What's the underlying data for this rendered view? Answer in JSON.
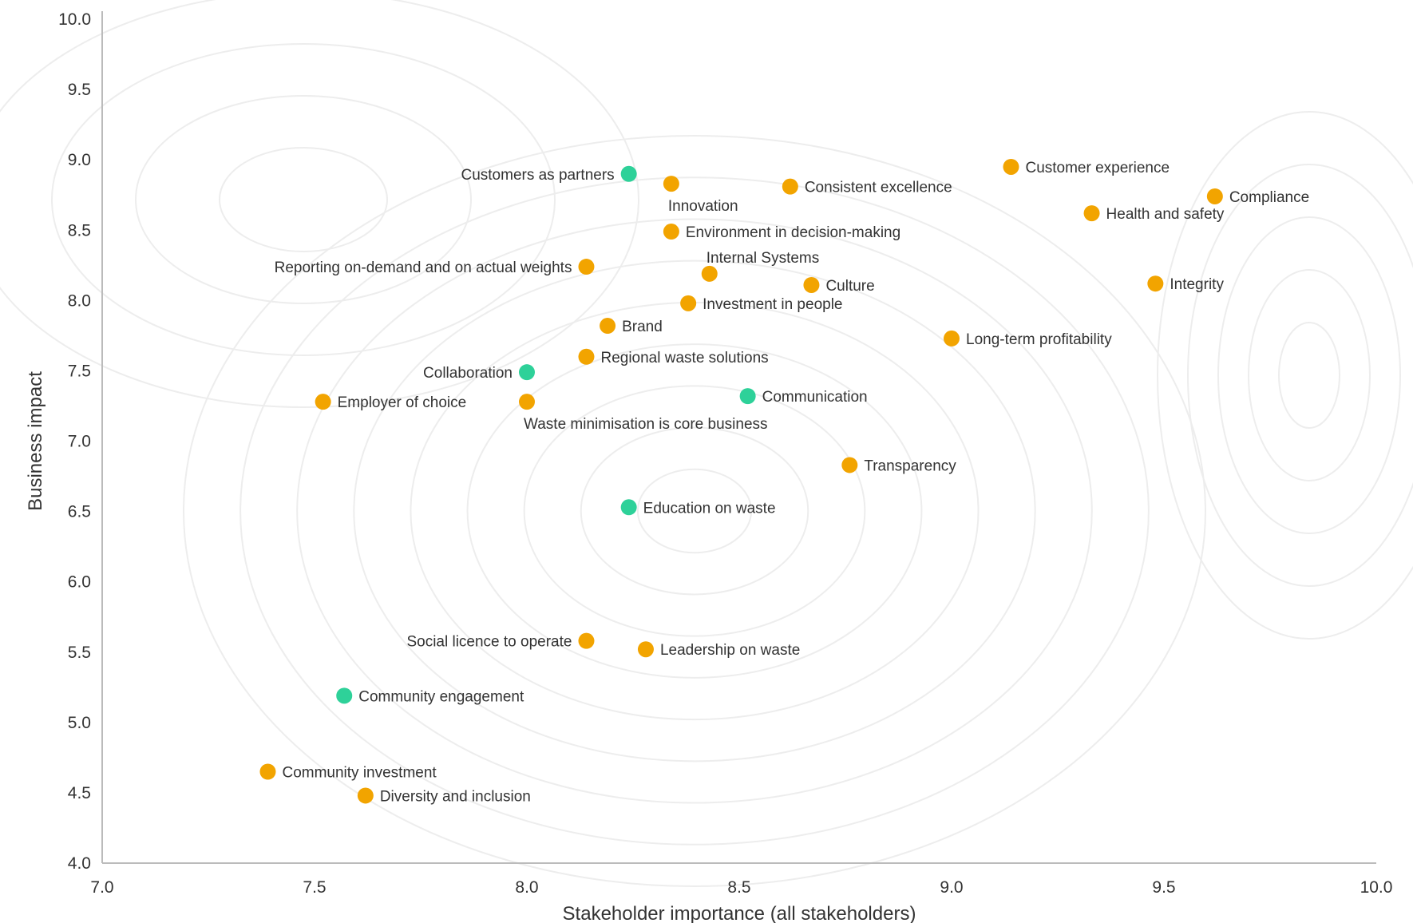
{
  "chart_data": {
    "type": "scatter",
    "title": "",
    "xlabel": "Stakeholder importance (all stakeholders)",
    "ylabel": "Business impact",
    "xlim": [
      7.0,
      10.0
    ],
    "ylim": [
      4.0,
      10.0
    ],
    "x_ticks": [
      "7.0",
      "7.5",
      "8.0",
      "8.5",
      "9.0",
      "9.5",
      "10.0"
    ],
    "y_ticks": [
      "4.0",
      "4.5",
      "5.0",
      "5.5",
      "6.0",
      "6.5",
      "7.0",
      "7.5",
      "8.0",
      "8.5",
      "9.0",
      "9.5",
      "10.0"
    ],
    "grid": false,
    "legend": "none",
    "colors": {
      "orange": "#F2A400",
      "green": "#2ED199",
      "axis": "#BBBBBB",
      "contour": "#EDEDED"
    },
    "points": [
      {
        "label": "Customers as partners",
        "x": 8.24,
        "y": 8.9,
        "color": "green",
        "label_pos": "left"
      },
      {
        "label": "Innovation",
        "x": 8.34,
        "y": 8.83,
        "color": "orange",
        "label_pos": "below"
      },
      {
        "label": "Consistent excellence",
        "x": 8.62,
        "y": 8.81,
        "color": "orange",
        "label_pos": "right"
      },
      {
        "label": "Customer experience",
        "x": 9.14,
        "y": 8.95,
        "color": "orange",
        "label_pos": "right"
      },
      {
        "label": "Compliance",
        "x": 9.62,
        "y": 8.74,
        "color": "orange",
        "label_pos": "right"
      },
      {
        "label": "Health and safety",
        "x": 9.33,
        "y": 8.62,
        "color": "orange",
        "label_pos": "right"
      },
      {
        "label": "Environment in decision-making",
        "x": 8.34,
        "y": 8.49,
        "color": "orange",
        "label_pos": "right"
      },
      {
        "label": "Reporting on-demand and on actual weights",
        "x": 8.14,
        "y": 8.24,
        "color": "orange",
        "label_pos": "left"
      },
      {
        "label": "Internal Systems",
        "x": 8.43,
        "y": 8.19,
        "color": "orange",
        "label_pos": "above"
      },
      {
        "label": "Culture",
        "x": 8.67,
        "y": 8.11,
        "color": "orange",
        "label_pos": "right"
      },
      {
        "label": "Integrity",
        "x": 9.48,
        "y": 8.12,
        "color": "orange",
        "label_pos": "right"
      },
      {
        "label": "Investment in people",
        "x": 8.38,
        "y": 7.98,
        "color": "orange",
        "label_pos": "right"
      },
      {
        "label": "Brand",
        "x": 8.19,
        "y": 7.82,
        "color": "orange",
        "label_pos": "right"
      },
      {
        "label": "Long-term profitability",
        "x": 9.0,
        "y": 7.73,
        "color": "orange",
        "label_pos": "right"
      },
      {
        "label": "Regional waste solutions",
        "x": 8.14,
        "y": 7.6,
        "color": "orange",
        "label_pos": "right"
      },
      {
        "label": "Collaboration",
        "x": 8.0,
        "y": 7.49,
        "color": "green",
        "label_pos": "left"
      },
      {
        "label": "Employer of choice",
        "x": 7.52,
        "y": 7.28,
        "color": "orange",
        "label_pos": "right"
      },
      {
        "label": "Waste minimisation is core business",
        "x": 8.0,
        "y": 7.28,
        "color": "orange",
        "label_pos": "below"
      },
      {
        "label": "Communication",
        "x": 8.52,
        "y": 7.32,
        "color": "green",
        "label_pos": "right"
      },
      {
        "label": "Transparency",
        "x": 8.76,
        "y": 6.83,
        "color": "orange",
        "label_pos": "right"
      },
      {
        "label": "Education on waste",
        "x": 8.24,
        "y": 6.53,
        "color": "green",
        "label_pos": "right"
      },
      {
        "label": "Social licence to operate",
        "x": 8.14,
        "y": 5.58,
        "color": "orange",
        "label_pos": "left"
      },
      {
        "label": "Leadership on waste",
        "x": 8.28,
        "y": 5.52,
        "color": "orange",
        "label_pos": "right"
      },
      {
        "label": "Community engagement",
        "x": 7.57,
        "y": 5.19,
        "color": "green",
        "label_pos": "right"
      },
      {
        "label": "Community investment",
        "x": 7.39,
        "y": 4.65,
        "color": "orange",
        "label_pos": "right"
      },
      {
        "label": "Diversity and inclusion",
        "x": 7.62,
        "y": 4.48,
        "color": "orange",
        "label_pos": "right"
      }
    ]
  }
}
